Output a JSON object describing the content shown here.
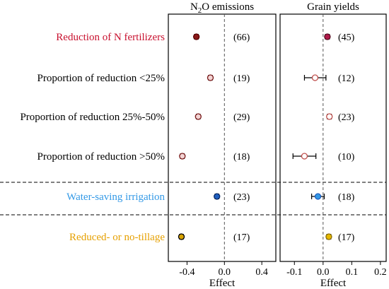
{
  "chart_data": {
    "type": "forest",
    "categories": [
      {
        "label": "Reduction of N fertilizers",
        "color": "#c8102e"
      },
      {
        "label": "Proportion of reduction <25%",
        "color": "#000000"
      },
      {
        "label": "Proportion of reduction 25%-50%",
        "color": "#000000"
      },
      {
        "label": "Proportion of reduction >50%",
        "color": "#000000"
      },
      {
        "label": "Water-saving irrigation",
        "color": "#3399e6"
      },
      {
        "label": "Reduced- or no-tillage",
        "color": "#e6a000"
      }
    ],
    "separators_after": [
      3,
      4
    ],
    "xlabel": "Effect",
    "panels": [
      {
        "title_main": "N",
        "title_sub": "2",
        "title_rest": "O emissions",
        "xlim": [
          -0.6,
          0.55
        ],
        "ticks": [
          -0.4,
          0.0,
          0.4
        ],
        "tick_labels": [
          "-0.4",
          "0.0",
          "0.4"
        ],
        "points": [
          {
            "est": -0.3,
            "lo": -0.32,
            "hi": -0.28,
            "n": "(66)",
            "fill": "#8b1a1a",
            "stroke": "#5a0000"
          },
          {
            "est": -0.15,
            "lo": -0.17,
            "hi": -0.13,
            "n": "(19)",
            "fill": "#f2d4d4",
            "stroke": "#7a1a1a"
          },
          {
            "est": -0.28,
            "lo": -0.3,
            "hi": -0.26,
            "n": "(29)",
            "fill": "#f2d4d4",
            "stroke": "#7a1a1a"
          },
          {
            "est": -0.45,
            "lo": -0.47,
            "hi": -0.43,
            "n": "(18)",
            "fill": "#f2d4d4",
            "stroke": "#7a1a1a"
          },
          {
            "est": -0.08,
            "lo": -0.1,
            "hi": -0.06,
            "n": "(23)",
            "fill": "#1f5fbf",
            "stroke": "#0a2a66"
          },
          {
            "est": -0.46,
            "lo": -0.48,
            "hi": -0.44,
            "n": "(17)",
            "fill": "#d9a400",
            "stroke": "#000000"
          }
        ]
      },
      {
        "title_main": "Grain yields",
        "title_sub": "",
        "title_rest": "",
        "xlim": [
          -0.15,
          0.22
        ],
        "ticks": [
          -0.1,
          0.0,
          0.1,
          0.2
        ],
        "tick_labels": [
          "-0.1",
          "0.0",
          "0.1",
          "0.2"
        ],
        "points": [
          {
            "est": 0.015,
            "lo": 0.008,
            "hi": 0.022,
            "n": "(45)",
            "fill": "#b01a4a",
            "stroke": "#5a0a20"
          },
          {
            "est": -0.028,
            "lo": -0.065,
            "hi": 0.01,
            "n": "(12)",
            "fill": "#ffffff",
            "stroke": "#c0504d"
          },
          {
            "est": 0.022,
            "lo": 0.015,
            "hi": 0.029,
            "n": "(23)",
            "fill": "#ffffff",
            "stroke": "#c0504d"
          },
          {
            "est": -0.065,
            "lo": -0.105,
            "hi": -0.025,
            "n": "(10)",
            "fill": "#ffffff",
            "stroke": "#c0504d"
          },
          {
            "est": -0.018,
            "lo": -0.04,
            "hi": 0.004,
            "n": "(18)",
            "fill": "#3399e6",
            "stroke": "#1f5fbf"
          },
          {
            "est": 0.02,
            "lo": 0.013,
            "hi": 0.027,
            "n": "(17)",
            "fill": "#e6b800",
            "stroke": "#8a6d00"
          }
        ]
      }
    ]
  }
}
